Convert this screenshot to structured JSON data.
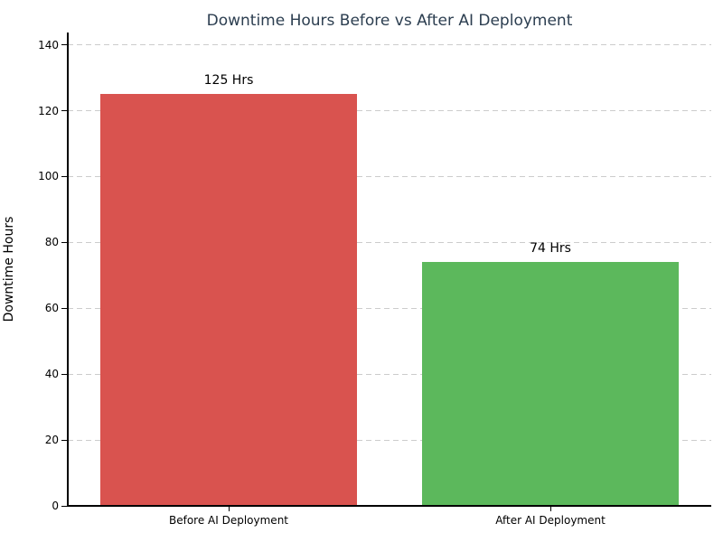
{
  "chart_data": {
    "type": "bar",
    "title": "Downtime Hours Before vs After AI Deployment",
    "xlabel": "",
    "ylabel": "Downtime Hours",
    "categories": [
      "Before AI Deployment",
      "After AI Deployment"
    ],
    "values": [
      125,
      74
    ],
    "value_labels": [
      "125 Hrs",
      "74 Hrs"
    ],
    "bar_colors": [
      "#d9534f",
      "#5cb85c"
    ],
    "yticks": [
      0,
      20,
      40,
      60,
      80,
      100,
      120,
      140
    ],
    "ylim": [
      0,
      143.75
    ],
    "bar_width_fraction": 0.8,
    "grid": "horizontal-dashed",
    "legend_position": "none"
  },
  "colors": {
    "title": "#2c3e50",
    "grid": "#cccccc",
    "axis": "#000000",
    "tick_text": "#000000",
    "background": "#ffffff"
  }
}
